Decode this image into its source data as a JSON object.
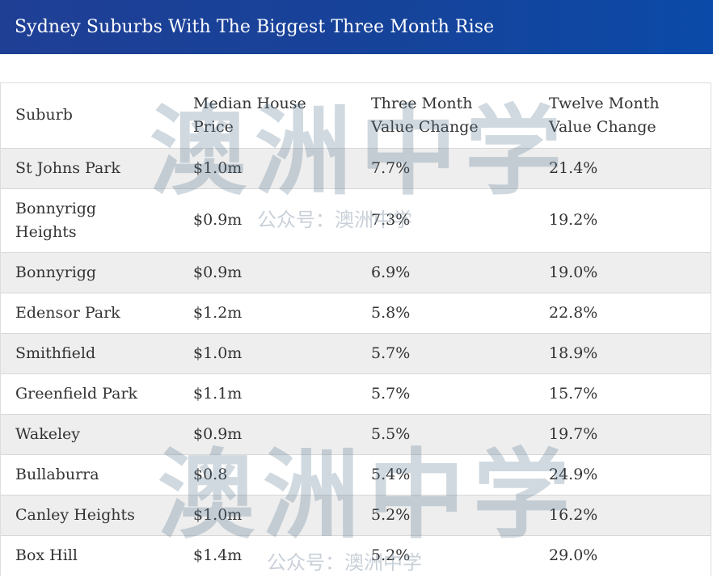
{
  "title": "Sydney Suburbs With The Biggest Three Month Rise",
  "table": {
    "headers": {
      "suburb": "Suburb",
      "median_price": "Median House Price",
      "three_month": "Three Month Value Change",
      "twelve_month": "Twelve Month Value Change"
    },
    "rows": [
      {
        "suburb": "St Johns Park",
        "price": "$1.0m",
        "three": "7.7%",
        "twelve": "21.4%"
      },
      {
        "suburb": "Bonnyrigg Heights",
        "price": "$0.9m",
        "three": "7.3%",
        "twelve": "19.2%"
      },
      {
        "suburb": "Bonnyrigg",
        "price": "$0.9m",
        "three": "6.9%",
        "twelve": "19.0%"
      },
      {
        "suburb": "Edensor Park",
        "price": "$1.2m",
        "three": "5.8%",
        "twelve": "22.8%"
      },
      {
        "suburb": "Smithfield",
        "price": "$1.0m",
        "three": "5.7%",
        "twelve": "18.9%"
      },
      {
        "suburb": "Greenfield Park",
        "price": "$1.1m",
        "three": "5.7%",
        "twelve": "15.7%"
      },
      {
        "suburb": "Wakeley",
        "price": "$0.9m",
        "three": "5.5%",
        "twelve": "19.7%"
      },
      {
        "suburb": "Bullaburra",
        "price": "$0.8",
        "three": "5.4%",
        "twelve": "24.9%"
      },
      {
        "suburb": "Canley Heights",
        "price": "$1.0m",
        "three": "5.2%",
        "twelve": "16.2%"
      },
      {
        "suburb": "Box Hill",
        "price": "$1.4m",
        "three": "5.2%",
        "twelve": "29.0%"
      }
    ]
  },
  "watermark": {
    "logo_text": "澳洲中学",
    "caption": "公众号：澳洲中学"
  }
}
